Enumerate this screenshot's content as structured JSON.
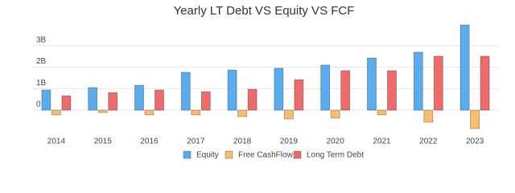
{
  "chart_data": {
    "type": "bar",
    "title": "Yearly LT Debt VS Equity VS FCF",
    "categories": [
      "2014",
      "2015",
      "2016",
      "2017",
      "2018",
      "2019",
      "2020",
      "2021",
      "2022",
      "2023"
    ],
    "series": [
      {
        "name": "Equity",
        "color": "#5aacef",
        "values": [
          940000000,
          1050000000,
          1160000000,
          1760000000,
          1870000000,
          1950000000,
          2100000000,
          2430000000,
          2700000000,
          3970000000
        ]
      },
      {
        "name": "Free CashFlow",
        "color": "#f9bd6b",
        "values": [
          -220000000,
          -110000000,
          -220000000,
          -220000000,
          -300000000,
          -410000000,
          -370000000,
          -220000000,
          -560000000,
          -860000000
        ]
      },
      {
        "name": "Long Term Debt",
        "color": "#ef6b6b",
        "values": [
          670000000,
          820000000,
          940000000,
          860000000,
          970000000,
          1420000000,
          1840000000,
          1840000000,
          2510000000,
          2510000000
        ]
      }
    ],
    "ylim": [
      -1000000000,
      4000000000
    ],
    "yticks": [
      0,
      {
        "value": 1000000000,
        "label": "1B"
      },
      {
        "value": 2000000000,
        "label": "2B"
      },
      {
        "value": 3000000000,
        "label": "3B"
      }
    ],
    "grid": true
  }
}
